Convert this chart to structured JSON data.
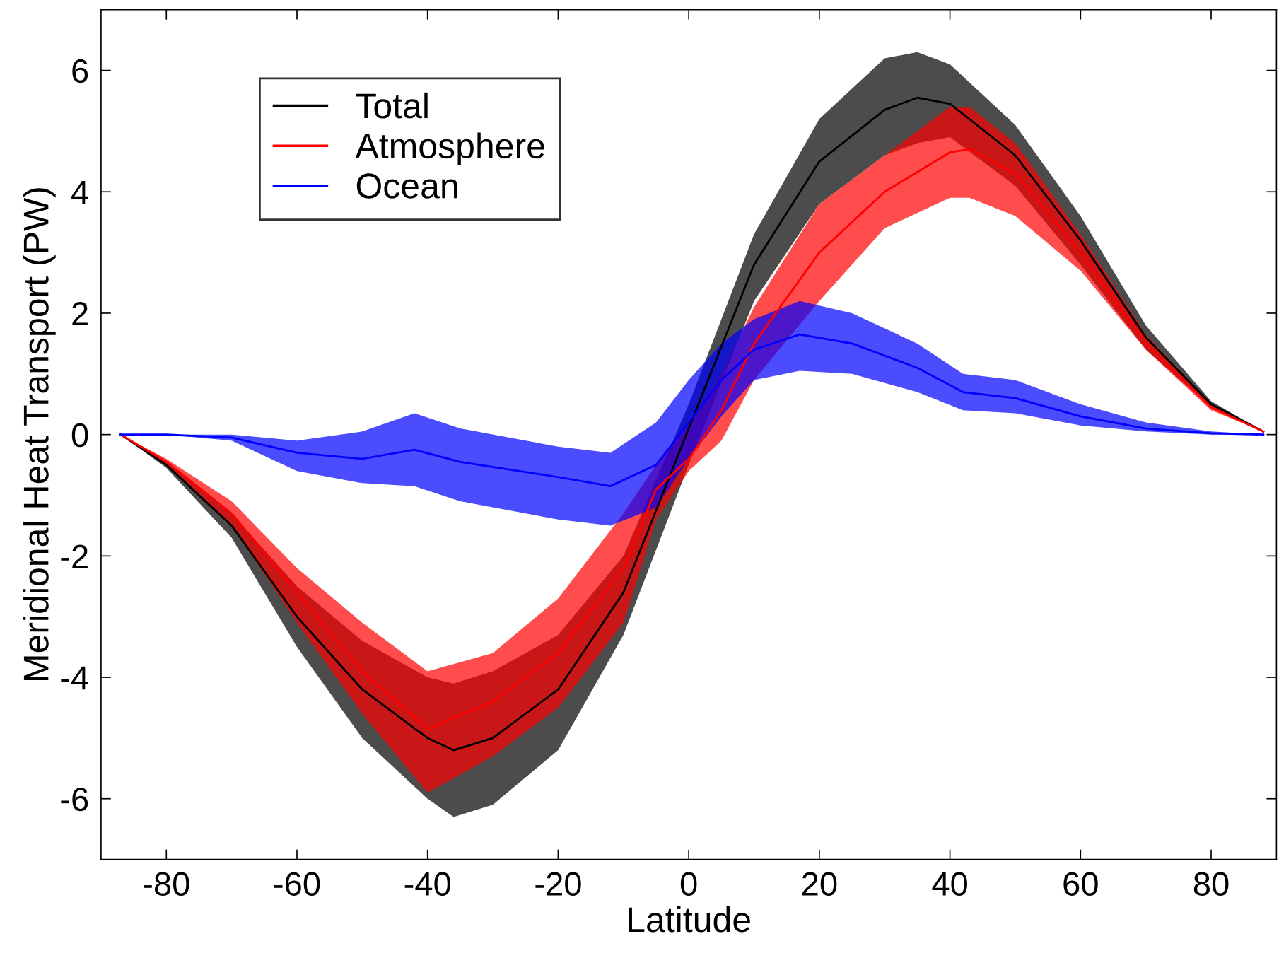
{
  "chart_data": {
    "type": "line",
    "xlabel": "Latitude",
    "ylabel": "Meridional Heat Transport (PW)",
    "xlim": [
      -90,
      90
    ],
    "ylim": [
      -7,
      7
    ],
    "xticks": [
      -80,
      -60,
      -40,
      -20,
      0,
      20,
      40,
      60,
      80
    ],
    "yticks": [
      -6,
      -4,
      -2,
      0,
      2,
      4,
      6
    ],
    "legend": "top left",
    "grid": false,
    "series": [
      {
        "name": "Total",
        "color": "#000000",
        "x": [
          -87,
          -80,
          -70,
          -60,
          -50,
          -40,
          -36,
          -30,
          -20,
          -10,
          0,
          10,
          20,
          30,
          35,
          40,
          50,
          60,
          70,
          80,
          88
        ],
        "values": [
          0,
          -0.5,
          -1.5,
          -3.0,
          -4.2,
          -5.0,
          -5.2,
          -5.0,
          -4.2,
          -2.6,
          0.1,
          2.8,
          4.5,
          5.35,
          5.55,
          5.45,
          4.6,
          3.2,
          1.6,
          0.5,
          0.05
        ],
        "upper": [
          0,
          -0.45,
          -1.3,
          -2.5,
          -3.4,
          -4.0,
          -4.1,
          -3.9,
          -3.3,
          -2.0,
          0.5,
          3.3,
          5.2,
          6.2,
          6.3,
          6.1,
          5.1,
          3.6,
          1.8,
          0.55,
          0.05
        ],
        "lower": [
          0,
          -0.55,
          -1.7,
          -3.5,
          -5.0,
          -6.0,
          -6.3,
          -6.1,
          -5.2,
          -3.3,
          -0.5,
          2.2,
          3.8,
          4.6,
          4.8,
          4.9,
          4.1,
          2.8,
          1.4,
          0.45,
          0.05
        ]
      },
      {
        "name": "Atmosphere",
        "color": "#ff0000",
        "x": [
          -87,
          -80,
          -70,
          -60,
          -50,
          -40,
          -30,
          -20,
          -10,
          -5,
          0,
          5,
          10,
          20,
          30,
          40,
          43,
          50,
          60,
          70,
          80,
          88
        ],
        "values": [
          0,
          -0.45,
          -1.3,
          -2.6,
          -3.9,
          -4.85,
          -4.4,
          -3.6,
          -2.2,
          -0.9,
          -0.4,
          0.4,
          1.5,
          3.0,
          4.0,
          4.65,
          4.7,
          4.3,
          3.0,
          1.5,
          0.45,
          0.05
        ],
        "upper": [
          0,
          -0.4,
          -1.1,
          -2.2,
          -3.1,
          -3.9,
          -3.6,
          -2.7,
          -1.3,
          -0.5,
          0.2,
          1.0,
          2.1,
          3.8,
          4.6,
          5.4,
          5.4,
          4.8,
          3.3,
          1.65,
          0.5,
          0.05
        ],
        "lower": [
          0,
          -0.5,
          -1.5,
          -3.1,
          -4.6,
          -5.9,
          -5.3,
          -4.5,
          -3.1,
          -1.4,
          -0.6,
          -0.1,
          0.9,
          2.2,
          3.4,
          3.9,
          3.9,
          3.6,
          2.7,
          1.4,
          0.4,
          0.05
        ]
      },
      {
        "name": "Ocean",
        "color": "#0000ff",
        "x": [
          -87,
          -80,
          -70,
          -60,
          -50,
          -42,
          -35,
          -20,
          -12,
          -5,
          0,
          5,
          10,
          17,
          25,
          35,
          42,
          50,
          60,
          70,
          80,
          88
        ],
        "values": [
          0,
          0,
          -0.05,
          -0.3,
          -0.4,
          -0.25,
          -0.45,
          -0.7,
          -0.85,
          -0.5,
          0.2,
          0.9,
          1.4,
          1.65,
          1.5,
          1.1,
          0.7,
          0.6,
          0.3,
          0.1,
          0.02,
          0
        ],
        "upper": [
          0,
          0,
          0,
          -0.1,
          0.05,
          0.35,
          0.1,
          -0.2,
          -0.3,
          0.2,
          0.9,
          1.5,
          1.9,
          2.2,
          2.0,
          1.5,
          1.0,
          0.9,
          0.5,
          0.2,
          0.05,
          0
        ],
        "lower": [
          0,
          0,
          -0.1,
          -0.6,
          -0.8,
          -0.85,
          -1.1,
          -1.4,
          -1.5,
          -1.2,
          -0.4,
          0.3,
          0.9,
          1.05,
          1.0,
          0.7,
          0.4,
          0.35,
          0.15,
          0.05,
          0,
          0
        ]
      }
    ]
  }
}
